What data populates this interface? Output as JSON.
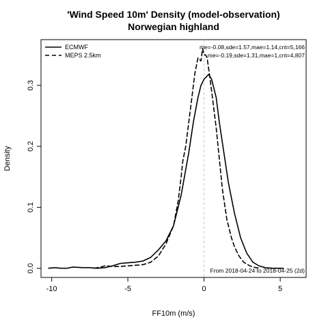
{
  "chart_data": {
    "type": "line",
    "title_line1": "'Wind Speed 10m' Density (model-observation)",
    "title_line2": "Norwegian highland",
    "xlabel": "FF10m (m/s)",
    "ylabel": "Density",
    "xlim": [
      -10.7,
      6.7
    ],
    "ylim": [
      -0.015,
      0.375
    ],
    "x_ticks": [
      -10,
      -5,
      0,
      5
    ],
    "x_tick_labels": [
      "-10",
      "-5",
      "0",
      "5"
    ],
    "y_ticks": [
      0.0,
      0.1,
      0.2,
      0.3
    ],
    "y_tick_labels": [
      "0.0",
      "0.1",
      "0.2",
      "0.3"
    ],
    "zero_line": 0,
    "legend_position": "top-left",
    "series": [
      {
        "name": "ECMWF",
        "style": "solid",
        "stats": "me=-0.08,sde=1.57,mae=1.14,cnt=5,166",
        "points": [
          [
            -10.2,
            0.0
          ],
          [
            -9.8,
            0.001
          ],
          [
            -9.4,
            0.0
          ],
          [
            -9.0,
            0.0
          ],
          [
            -8.6,
            0.002
          ],
          [
            -8.0,
            0.001
          ],
          [
            -7.5,
            0.001
          ],
          [
            -7.0,
            0.0
          ],
          [
            -6.5,
            0.001
          ],
          [
            -6.0,
            0.004
          ],
          [
            -5.5,
            0.008
          ],
          [
            -5.0,
            0.009
          ],
          [
            -4.5,
            0.01
          ],
          [
            -4.0,
            0.012
          ],
          [
            -3.5,
            0.018
          ],
          [
            -3.0,
            0.03
          ],
          [
            -2.5,
            0.045
          ],
          [
            -2.0,
            0.07
          ],
          [
            -1.5,
            0.12
          ],
          [
            -1.0,
            0.19
          ],
          [
            -0.7,
            0.24
          ],
          [
            -0.4,
            0.28
          ],
          [
            -0.2,
            0.3
          ],
          [
            0.0,
            0.31
          ],
          [
            0.3,
            0.318
          ],
          [
            0.5,
            0.31
          ],
          [
            0.8,
            0.28
          ],
          [
            1.0,
            0.24
          ],
          [
            1.3,
            0.19
          ],
          [
            1.6,
            0.14
          ],
          [
            2.0,
            0.09
          ],
          [
            2.4,
            0.05
          ],
          [
            2.8,
            0.025
          ],
          [
            3.2,
            0.01
          ],
          [
            3.6,
            0.004
          ],
          [
            4.0,
            0.001
          ],
          [
            4.5,
            0.0
          ],
          [
            5.2,
            0.0
          ]
        ]
      },
      {
        "name": "MEPS 2.5km",
        "style": "dashed",
        "stats": "me=-0.19,sde=1.31,mae=1,cnt=4,807",
        "points": [
          [
            -7.2,
            0.0
          ],
          [
            -6.8,
            0.002
          ],
          [
            -6.5,
            0.004
          ],
          [
            -6.0,
            0.003
          ],
          [
            -5.5,
            0.003
          ],
          [
            -5.0,
            0.004
          ],
          [
            -4.5,
            0.005
          ],
          [
            -4.0,
            0.006
          ],
          [
            -3.5,
            0.01
          ],
          [
            -3.0,
            0.02
          ],
          [
            -2.5,
            0.04
          ],
          [
            -2.0,
            0.07
          ],
          [
            -1.7,
            0.11
          ],
          [
            -1.5,
            0.15
          ],
          [
            -1.4,
            0.175
          ],
          [
            -1.2,
            0.2
          ],
          [
            -1.0,
            0.24
          ],
          [
            -0.8,
            0.28
          ],
          [
            -0.6,
            0.32
          ],
          [
            -0.4,
            0.345
          ],
          [
            -0.2,
            0.34
          ],
          [
            -0.1,
            0.36
          ],
          [
            0.0,
            0.35
          ],
          [
            0.1,
            0.35
          ],
          [
            0.2,
            0.345
          ],
          [
            0.4,
            0.31
          ],
          [
            0.6,
            0.27
          ],
          [
            0.8,
            0.23
          ],
          [
            1.0,
            0.18
          ],
          [
            1.2,
            0.13
          ],
          [
            1.5,
            0.08
          ],
          [
            1.8,
            0.05
          ],
          [
            2.0,
            0.035
          ],
          [
            2.3,
            0.02
          ],
          [
            2.6,
            0.01
          ],
          [
            3.0,
            0.004
          ],
          [
            3.4,
            0.001
          ],
          [
            3.7,
            0.0
          ]
        ]
      }
    ],
    "footer_note": "From 2018-04-24 to 2018-04-25 (2d)"
  },
  "colors": {
    "line": "#000000",
    "zero_line": "#c8c8c8",
    "axis": "#000000"
  }
}
